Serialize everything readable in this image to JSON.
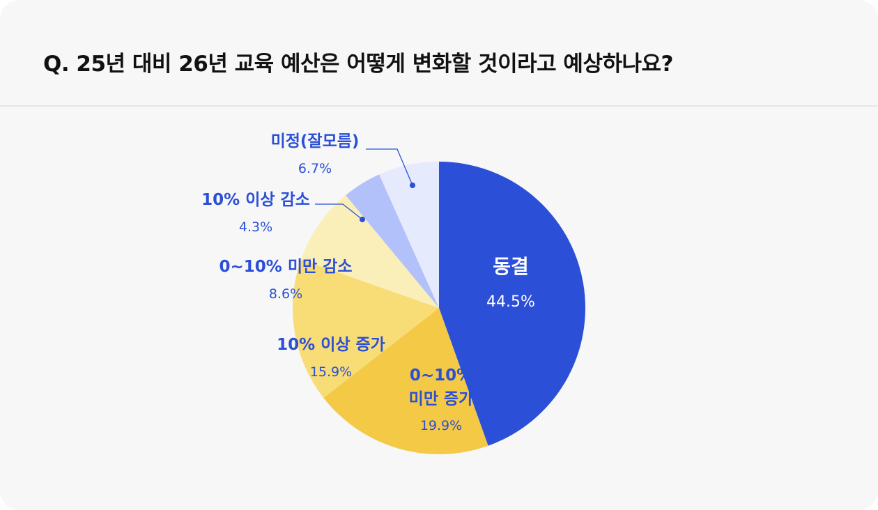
{
  "title": "Q. 25년 대비 26년 교육 예산은 어떻게 변화할 것이라고 예상하나요?",
  "chart_data": {
    "type": "pie",
    "title": "Q. 25년 대비 26년 교육 예산은 어떻게 변화할 것이라고 예상하나요?",
    "slices": [
      {
        "label": "동결",
        "value": 44.5,
        "display": "44.5%",
        "color": "#2b4fd6"
      },
      {
        "label": "0~10%\n미만 증가",
        "value": 19.9,
        "display": "19.9%",
        "color": "#f4c945"
      },
      {
        "label": "10% 이상 증가",
        "value": 15.9,
        "display": "15.9%",
        "color": "#f8dc76"
      },
      {
        "label": "0~10% 미만 감소",
        "value": 8.6,
        "display": "8.6%",
        "color": "#fbefb9"
      },
      {
        "label": "10% 이상 감소",
        "value": 4.3,
        "display": "4.3%",
        "color": "#b3c1fb"
      },
      {
        "label": "미정(잘모름)",
        "value": 6.7,
        "display": "6.7%",
        "color": "#e5eafd"
      }
    ]
  }
}
